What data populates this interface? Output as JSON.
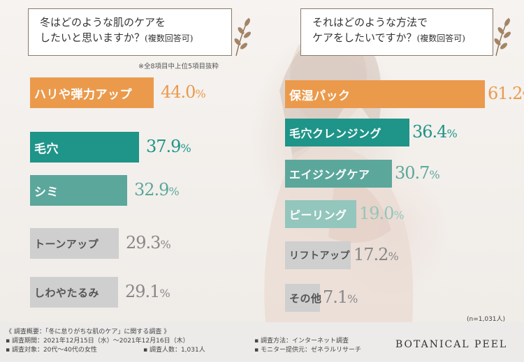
{
  "left_question": {
    "line1": "冬はどのような肌のケアを",
    "line2_main": "したいと思いますか？",
    "line2_note": "(複数回答可)"
  },
  "left_note": "※全8項目中上位5項目抜粋",
  "right_question": {
    "line1": "それはどのような方法で",
    "line2_main": "ケアをしたいですか？",
    "line2_note": "(複数回答可)"
  },
  "sample_size": "(n=1,031人)",
  "footer": {
    "overview": "《 調査概要：「冬に怠りがちな肌のケア」に関する調査 》",
    "period": "▪ 調査期間：2021年12月15日（水）～2021年12月16日（木）",
    "method": "▪ 調査方法：インターネット調査",
    "target": "▪ 調査対象：20代～40代の女性",
    "count": "▪ 調査人数：1,031人",
    "provider": "▪ モニター提供元：ゼネラルリサーチ"
  },
  "brand": "BOTANICAL PEEL",
  "colors": {
    "orange": "#eb9a4c",
    "teal_dark": "#1f9488",
    "teal_mid": "#5ba79b",
    "teal_light": "#93c6bd",
    "gray": "#cfcfcf",
    "gray_text": "#888888"
  },
  "chart_data": [
    {
      "type": "bar",
      "orientation": "horizontal",
      "categories": [
        "ハリや弾力アップ",
        "毛穴",
        "シミ",
        "トーンアップ",
        "しわやたるみ"
      ],
      "values": [
        44.0,
        37.9,
        32.9,
        29.3,
        29.1
      ],
      "value_labels": [
        "44.0",
        "37.9",
        "32.9",
        "29.3",
        "29.1"
      ],
      "unit": "%"
    },
    {
      "type": "bar",
      "orientation": "horizontal",
      "categories": [
        "保湿パック",
        "毛穴クレンジング",
        "エイジングケア",
        "ピーリング",
        "リフトアップ",
        "その他"
      ],
      "values": [
        61.2,
        36.4,
        30.7,
        19.0,
        17.2,
        7.1
      ],
      "value_labels": [
        "61.2",
        "36.4",
        "30.7",
        "19.0",
        "17.2",
        "7.1"
      ],
      "unit": "%"
    }
  ]
}
